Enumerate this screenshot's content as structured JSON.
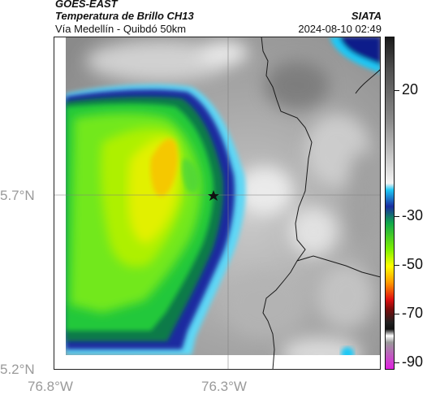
{
  "header": {
    "source": "GOES-EAST",
    "product": "Temperatura de Brillo CH13",
    "region": "Vía Medellín - Quibdó 50km",
    "credit": "SIATA",
    "datetime": "2024-08-10 02:49"
  },
  "axes": {
    "lat_ticks": [
      "5.7°N",
      "5.2°N"
    ],
    "lon_ticks": [
      "76.8°W",
      "76.3°W"
    ]
  },
  "colorbar": {
    "ticks": [
      "20",
      "-30",
      "-50",
      "-70",
      "-90"
    ],
    "palette": [
      "#3a3a3a",
      "#8a8a8a",
      "#f0f0f0",
      "#1ec8f5",
      "#0a1a8a",
      "#1aa12e",
      "#7ef000",
      "#ffff00",
      "#ff9a00",
      "#e01010",
      "#202020",
      "#bdbdbd",
      "#b040b0"
    ]
  },
  "map": {
    "marker": "star",
    "background_color": "#a8a8a8",
    "cloud_cold_colors": [
      "#12209a",
      "#10a84a",
      "#5fe03a",
      "#a6f000",
      "#e6f000",
      "#f8c400"
    ]
  }
}
